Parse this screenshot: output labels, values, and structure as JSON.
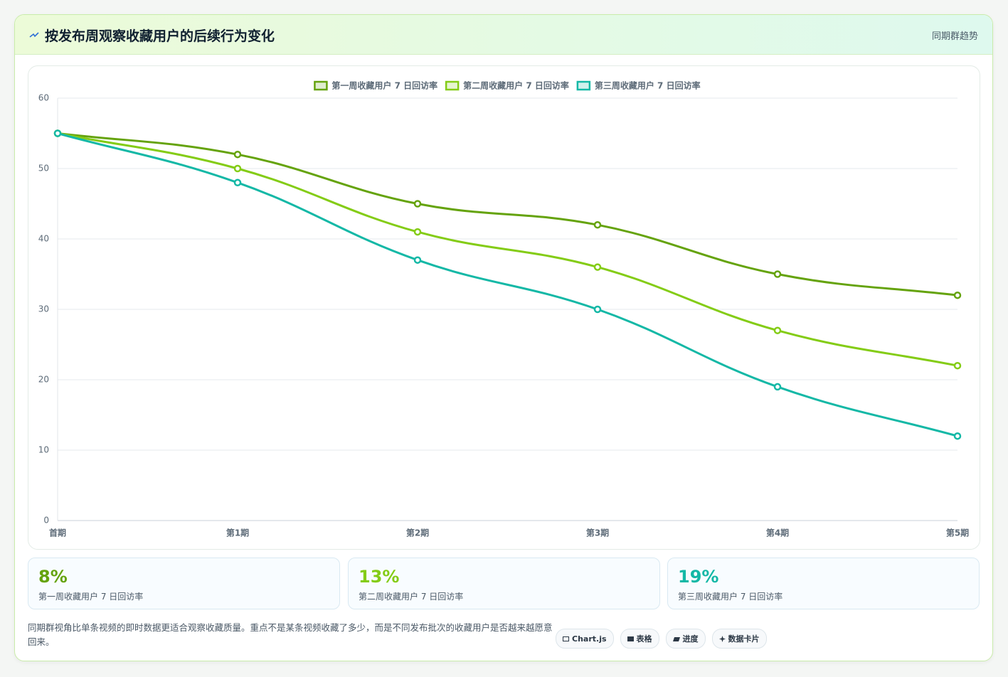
{
  "header": {
    "title": "按发布周观察收藏用户的后续行为变化",
    "badge": "同期群趋势"
  },
  "chart_data": {
    "type": "line",
    "categories": [
      "首期",
      "第1期",
      "第2期",
      "第3期",
      "第4期",
      "第5期"
    ],
    "series": [
      {
        "name": "第一周收藏用户 7 日回访率",
        "color": "#65a30d",
        "values": [
          55,
          52,
          45,
          42,
          35,
          32
        ]
      },
      {
        "name": "第二周收藏用户 7 日回访率",
        "color": "#84cc16",
        "values": [
          55,
          50,
          41,
          36,
          27,
          22
        ]
      },
      {
        "name": "第三周收藏用户 7 日回访率",
        "color": "#14b8a6",
        "values": [
          55,
          48,
          37,
          30,
          19,
          12
        ]
      }
    ],
    "ylim": [
      0,
      60
    ],
    "yticks": [
      0,
      10,
      20,
      30,
      40,
      50,
      60
    ],
    "grid": true,
    "legend": "top"
  },
  "stats": [
    {
      "value": "8%",
      "label": "第一周收藏用户 7 日回访率"
    },
    {
      "value": "13%",
      "label": "第二周收藏用户 7 日回访率"
    },
    {
      "value": "19%",
      "label": "第三周收藏用户 7 日回访率"
    }
  ],
  "footer": {
    "note": "同期群视角比单条视频的即时数据更适合观察收藏质量。重点不是某条视频收藏了多少，而是不同发布批次的收藏用户是否越来越愿意回来。",
    "chips": [
      "Chart.js",
      "表格",
      "进度",
      "数据卡片"
    ]
  }
}
